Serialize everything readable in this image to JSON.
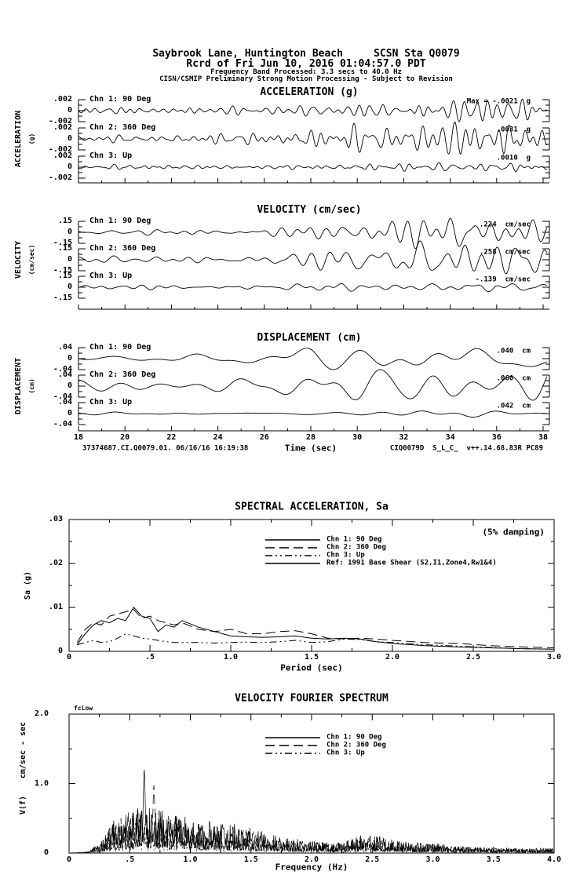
{
  "header": {
    "station_line": "Saybrook Lane, Huntington Beach     SCSN Sta Q0079",
    "record_line": "Rcrd of Fri Jun 10, 2016 01:04:57.0 PDT",
    "band_line": "Frequency Band Processed: 3.3 secs to 40.0 Hz",
    "notice_line": "CISN/CSMIP Preliminary Strong Motion Processing - Subject to Revision"
  },
  "footer": {
    "left": "37374687.CI.Q0079.01. 06/16/16 16:19:38",
    "right": "CIQ0079D  S_L_C_  v++.14.68.83R PC89"
  },
  "colors": {
    "ink": "#000000",
    "paper": "#ffffff"
  },
  "chart_data": [
    {
      "id": "acceleration",
      "type": "line",
      "title": "ACCELERATION (g)",
      "ylabel": "ACCELERATION",
      "ylabel_units": "(g)",
      "units": "g",
      "x_range_sec": [
        18,
        38
      ],
      "strip_ylim": 0.002,
      "y_tick_labels": [
        ".002",
        "0",
        "-.002"
      ],
      "freq_band_hz": [
        1.2,
        3.2
      ],
      "channels": [
        {
          "label": "Chn 1: 90 Deg",
          "max_label": "Max = -.0021  g",
          "max_value": -0.0021,
          "seed": 11,
          "envelope": [
            [
              18,
              0.0006
            ],
            [
              26,
              0.0007
            ],
            [
              28,
              0.0012
            ],
            [
              31,
              0.0017
            ],
            [
              34,
              0.0021
            ],
            [
              38,
              0.0018
            ]
          ],
          "plot_peak": 0.0021
        },
        {
          "label": "Chn 2: 360 Deg",
          "max_label": ".0031  g",
          "max_value": 0.0031,
          "seed": 22,
          "envelope": [
            [
              18,
              0.0006
            ],
            [
              26,
              0.00065
            ],
            [
              28,
              0.0013
            ],
            [
              31,
              0.002
            ],
            [
              35,
              0.0031
            ],
            [
              38,
              0.0024
            ]
          ],
          "plot_peak": 0.0031
        },
        {
          "label": "Chn 3: Up",
          "max_label": ".0010  g",
          "max_value": 0.001,
          "seed": 33,
          "envelope": [
            [
              18,
              0.0005
            ],
            [
              26,
              0.0005
            ],
            [
              30,
              0.0006
            ],
            [
              34,
              0.0008
            ],
            [
              38,
              0.0007
            ]
          ],
          "plot_peak": 0.0008
        }
      ]
    },
    {
      "id": "velocity",
      "type": "line",
      "title": "VELOCITY (cm/sec)",
      "ylabel": "VELOCITY",
      "ylabel_units": "(cm/sec)",
      "units": "cm/sec",
      "x_range_sec": [
        18,
        38
      ],
      "strip_ylim": 0.15,
      "y_tick_labels": [
        ".15",
        "0",
        "-.15"
      ],
      "freq_band_hz": [
        0.5,
        1.7
      ],
      "channels": [
        {
          "label": "Chn 1: 90 Deg",
          "max_label": ".224  cm/sec",
          "max_value": 0.224,
          "seed": 44,
          "envelope": [
            [
              18,
              0.03
            ],
            [
              26,
              0.04
            ],
            [
              28,
              0.08
            ],
            [
              31,
              0.14
            ],
            [
              34,
              0.224
            ],
            [
              36,
              0.18
            ],
            [
              38,
              0.16
            ]
          ],
          "plot_peak": 0.224
        },
        {
          "label": "Chn 2: 360 Deg",
          "max_label": ".258  cm/sec",
          "max_value": 0.258,
          "seed": 55,
          "envelope": [
            [
              18,
              0.035
            ],
            [
              26,
              0.05
            ],
            [
              28,
              0.09
            ],
            [
              31,
              0.15
            ],
            [
              34,
              0.2
            ],
            [
              36.5,
              0.258
            ],
            [
              38,
              0.2
            ]
          ],
          "plot_peak": 0.258
        },
        {
          "label": "Chn 3: Up",
          "max_label": "-.139  cm/sec",
          "max_value": -0.139,
          "seed": 66,
          "envelope": [
            [
              18,
              0.025
            ],
            [
              26,
              0.03
            ],
            [
              29,
              0.05
            ],
            [
              33,
              0.06
            ],
            [
              38,
              0.045
            ]
          ],
          "plot_peak": 0.06
        }
      ]
    },
    {
      "id": "displacement",
      "type": "line",
      "title": "DISPLACEMENT (cm)",
      "ylabel": "DISPLACEMENT",
      "ylabel_units": "(cm)",
      "units": "cm",
      "xlabel": "Time (sec)",
      "x_range_sec": [
        18,
        38
      ],
      "x_ticks": [
        18,
        20,
        22,
        24,
        26,
        28,
        30,
        32,
        34,
        36,
        38
      ],
      "x_tick_labels": [
        "18",
        "20",
        "22",
        "24",
        "26",
        "28",
        "30",
        "32",
        "34",
        "36",
        "38"
      ],
      "strip_ylim": 0.04,
      "y_tick_labels": [
        ".04",
        "0",
        "-.04"
      ],
      "freq_band_hz": [
        0.15,
        0.75
      ],
      "channels": [
        {
          "label": "Chn 1: 90 Deg",
          "max_label": ".040  cm",
          "max_value": 0.04,
          "seed": 77,
          "envelope": [
            [
              18,
              0.009
            ],
            [
              26,
              0.015
            ],
            [
              28,
              0.035
            ],
            [
              31,
              0.04
            ],
            [
              34,
              0.025
            ],
            [
              38,
              0.03
            ]
          ],
          "plot_peak": 0.04
        },
        {
          "label": "Chn 2: 360 Deg",
          "max_label": ".060  cm",
          "max_value": 0.06,
          "seed": 88,
          "envelope": [
            [
              18,
              0.012
            ],
            [
              26,
              0.02
            ],
            [
              29,
              0.03
            ],
            [
              32,
              0.04
            ],
            [
              35.5,
              0.06
            ],
            [
              38,
              0.045
            ]
          ],
          "plot_peak": 0.06
        },
        {
          "label": "Chn 3: Up",
          "max_label": ".042  cm",
          "max_value": 0.042,
          "seed": 99,
          "envelope": [
            [
              18,
              0.006
            ],
            [
              25,
              0.008
            ],
            [
              28,
              0.01
            ],
            [
              31,
              0.012
            ],
            [
              34,
              0.013
            ],
            [
              38,
              0.01
            ]
          ],
          "plot_peak": 0.013
        }
      ]
    },
    {
      "id": "spectral-acceleration",
      "type": "line",
      "title": "SPECTRAL ACCELERATION, Sa",
      "annotation": "(5% damping)",
      "damping_pct": 5,
      "ylabel": "Sa (g)",
      "xlabel": "Period (sec)",
      "xlim": [
        0,
        3
      ],
      "ylim": [
        0,
        0.03
      ],
      "x_ticks": [
        0,
        0.5,
        1.0,
        1.5,
        2.0,
        2.5,
        3.0
      ],
      "x_tick_labels": [
        "0",
        ".5",
        "1.0",
        "1.5",
        "2.0",
        "2.5",
        "3.0"
      ],
      "y_ticks": [
        0,
        0.01,
        0.02,
        0.03
      ],
      "y_tick_labels": [
        "0",
        ".01",
        ".02",
        ".03"
      ],
      "legend": [
        {
          "label": "Chn 1: 90 Deg",
          "dash": "solid"
        },
        {
          "label": "Chn 2: 360 Deg",
          "dash": "long-dash"
        },
        {
          "label": "Chn 3: Up",
          "dash": "dash-dot-dot"
        },
        {
          "label": "Ref: 1991 Base Shear (S2,I1,Zone4,Rw1&4)",
          "dash": "solid"
        }
      ],
      "series": [
        {
          "name": "Chn 1: 90 Deg",
          "dash": "solid",
          "x": [
            0.05,
            0.1,
            0.15,
            0.2,
            0.25,
            0.3,
            0.35,
            0.4,
            0.45,
            0.5,
            0.55,
            0.6,
            0.65,
            0.7,
            0.8,
            0.9,
            1.0,
            1.1,
            1.2,
            1.3,
            1.4,
            1.5,
            1.6,
            1.7,
            1.8,
            1.9,
            2.0,
            2.2,
            2.4,
            2.6,
            2.8,
            3.0
          ],
          "y": [
            0.0015,
            0.004,
            0.006,
            0.007,
            0.0065,
            0.0075,
            0.007,
            0.01,
            0.008,
            0.0075,
            0.0045,
            0.006,
            0.0055,
            0.007,
            0.0055,
            0.0045,
            0.0035,
            0.0033,
            0.0032,
            0.0033,
            0.0035,
            0.003,
            0.0028,
            0.003,
            0.0028,
            0.0022,
            0.0018,
            0.0013,
            0.001,
            0.0008,
            0.0006,
            0.0005
          ]
        },
        {
          "name": "Chn 2: 360 Deg",
          "dash": "long-dash",
          "x": [
            0.05,
            0.1,
            0.15,
            0.2,
            0.25,
            0.3,
            0.35,
            0.4,
            0.45,
            0.5,
            0.55,
            0.6,
            0.65,
            0.7,
            0.8,
            0.9,
            1.0,
            1.1,
            1.2,
            1.3,
            1.4,
            1.5,
            1.6,
            1.7,
            1.8,
            1.9,
            2.0,
            2.2,
            2.4,
            2.6,
            2.8,
            3.0
          ],
          "y": [
            0.002,
            0.005,
            0.0065,
            0.006,
            0.008,
            0.0085,
            0.009,
            0.0095,
            0.0075,
            0.008,
            0.007,
            0.0065,
            0.006,
            0.0065,
            0.005,
            0.0045,
            0.005,
            0.004,
            0.004,
            0.0045,
            0.0047,
            0.004,
            0.003,
            0.0028,
            0.003,
            0.0028,
            0.0025,
            0.002,
            0.0018,
            0.0013,
            0.001,
            0.0008
          ]
        },
        {
          "name": "Chn 3: Up",
          "dash": "dash-dot-dot",
          "x": [
            0.05,
            0.1,
            0.15,
            0.2,
            0.25,
            0.3,
            0.35,
            0.4,
            0.45,
            0.5,
            0.55,
            0.6,
            0.65,
            0.7,
            0.8,
            0.9,
            1.0,
            1.1,
            1.2,
            1.3,
            1.4,
            1.5,
            1.6,
            1.7,
            1.8,
            1.9,
            2.0,
            2.2,
            2.4,
            2.6,
            2.8,
            3.0
          ],
          "y": [
            0.0015,
            0.002,
            0.0025,
            0.002,
            0.0022,
            0.003,
            0.004,
            0.0035,
            0.003,
            0.0028,
            0.0025,
            0.0022,
            0.002,
            0.002,
            0.002,
            0.0019,
            0.002,
            0.0021,
            0.002,
            0.0022,
            0.0025,
            0.002,
            0.0022,
            0.0028,
            0.0027,
            0.0022,
            0.002,
            0.0015,
            0.0012,
            0.0009,
            0.0006,
            0.0005
          ]
        },
        {
          "name": "Ref: 1991 Base Shear (S2,I1,Zone4,Rw1&4)",
          "dash": "solid",
          "x": [],
          "y": []
        }
      ]
    },
    {
      "id": "velocity-fourier-spectrum",
      "type": "line",
      "title": "VELOCITY FOURIER SPECTRUM",
      "corner_marker": "fcLow",
      "ylabel": "V(f)",
      "ylabel_units": "cm/sec - sec",
      "xlabel": "Frequency (Hz)",
      "xlim": [
        0,
        4
      ],
      "ylim": [
        0,
        2.0
      ],
      "x_ticks": [
        0,
        0.5,
        1.0,
        1.5,
        2.0,
        2.5,
        3.0,
        3.5,
        4.0
      ],
      "x_tick_labels": [
        "0",
        ".5",
        "1.0",
        "1.5",
        "2.0",
        "2.5",
        "3.0",
        "3.5",
        "4.0"
      ],
      "y_ticks": [
        0,
        1.0,
        2.0
      ],
      "y_tick_labels": [
        "0",
        "1.0",
        "2.0"
      ],
      "legend": [
        {
          "label": "Chn 1: 90 Deg",
          "dash": "solid"
        },
        {
          "label": "Chn 2: 360 Deg",
          "dash": "long-dash"
        },
        {
          "label": "Chn 3: Up",
          "dash": "dash-dot-dot"
        }
      ],
      "envelope": [
        [
          0,
          0
        ],
        [
          0.15,
          0.02
        ],
        [
          0.25,
          0.15
        ],
        [
          0.35,
          0.45
        ],
        [
          0.45,
          0.6
        ],
        [
          0.55,
          0.65
        ],
        [
          0.65,
          0.7
        ],
        [
          0.75,
          0.65
        ],
        [
          0.9,
          0.55
        ],
        [
          1.0,
          0.5
        ],
        [
          1.2,
          0.45
        ],
        [
          1.4,
          0.42
        ],
        [
          1.6,
          0.3
        ],
        [
          1.8,
          0.22
        ],
        [
          2.0,
          0.18
        ],
        [
          2.2,
          0.15
        ],
        [
          2.45,
          0.28
        ],
        [
          2.6,
          0.22
        ],
        [
          2.8,
          0.15
        ],
        [
          3.0,
          0.15
        ],
        [
          3.2,
          0.1
        ],
        [
          3.5,
          0.08
        ],
        [
          3.8,
          0.07
        ],
        [
          4.0,
          0.08
        ]
      ],
      "channels": [
        {
          "label": "Chn 1: 90 Deg",
          "dash": "solid",
          "seed": 71,
          "peak_hz": 0.62,
          "peak_value": 1.22,
          "scale": 1.0
        },
        {
          "label": "Chn 2: 360 Deg",
          "dash": "long-dash",
          "seed": 72,
          "peak_hz": 0.7,
          "peak_value": 1.0,
          "scale": 0.95
        },
        {
          "label": "Chn 3: Up",
          "dash": "dash-dot-dot",
          "seed": 73,
          "peak_hz": 0.55,
          "peak_value": 0.5,
          "scale": 0.55
        }
      ]
    }
  ]
}
